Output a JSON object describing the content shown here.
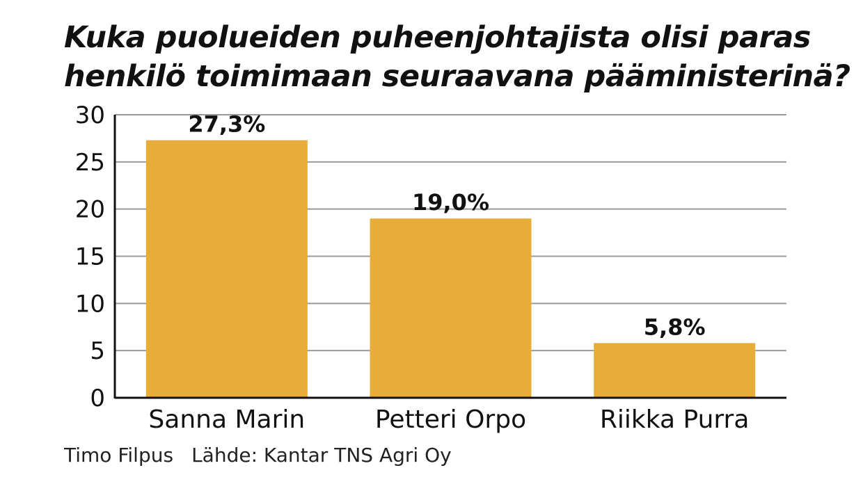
{
  "title_lines": [
    "Kuka puolueiden puheenjohtajista olisi paras",
    "henkilö toimimaan seuraavana pääministerinä?"
  ],
  "author": "Timo Filpus",
  "source": "Lähde: Kantar TNS Agri Oy",
  "colors": {
    "bar": "#E8AC3B",
    "grid": "#9a9a9a",
    "axis": "#111111"
  },
  "chart_data": {
    "type": "bar",
    "categories": [
      "Sanna Marin",
      "Petteri Orpo",
      "Riikka Purra"
    ],
    "values": [
      27.3,
      19.0,
      5.8
    ],
    "data_labels": [
      "27,3%",
      "19,0%",
      "5,8%"
    ],
    "title": "Kuka puolueiden puheenjohtajista olisi paras henkilö toimimaan seuraavana pääministerinä?",
    "xlabel": "",
    "ylabel": "",
    "ylim": [
      0,
      30
    ],
    "yticks": [
      0,
      5,
      10,
      15,
      20,
      25,
      30
    ],
    "grid": true,
    "legend": "none"
  }
}
